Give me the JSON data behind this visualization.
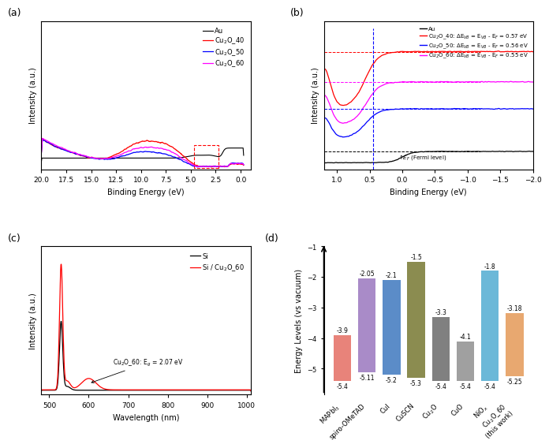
{
  "panel_a": {
    "xlabel": "Binding Energy (eV)",
    "ylabel": "Intensity (a.u.)",
    "xlim": [
      20,
      -1
    ],
    "colors": {
      "Au": "black",
      "Cu2O_40": "red",
      "Cu2O_50": "blue",
      "Cu2O_60": "magenta"
    }
  },
  "panel_b": {
    "xlabel": "Binding Energy (eV)",
    "ylabel": "Intensity (a.u.)",
    "xlim": [
      1.2,
      -2.0
    ],
    "fermi_label": "$E_F$ (Fermi level)"
  },
  "panel_c": {
    "xlabel": "Wavelength (nm)",
    "ylabel": "Intensity (a.u.)",
    "xlim": [
      480,
      1010
    ]
  },
  "panel_d": {
    "ylabel": "Energy Levels (vs vacuum)",
    "materials": [
      "MAPbI$_3$",
      "spiro-OMeTAD",
      "CuI",
      "CuSCN",
      "Cu$_2$O",
      "CuO",
      "NiO$_x$",
      "Cu$_2$O_60\n(this work)"
    ],
    "top_values": [
      -3.9,
      -2.05,
      -2.1,
      -1.5,
      -3.3,
      -4.1,
      -1.8,
      -3.18
    ],
    "bottom_values": [
      -5.4,
      -5.11,
      -5.2,
      -5.3,
      -5.4,
      -5.4,
      -5.4,
      -5.25
    ],
    "bar_colors": [
      "#E8837A",
      "#A98BC8",
      "#5B8CC8",
      "#8B8C50",
      "#808080",
      "#A0A0A0",
      "#6BB8D8",
      "#E8A870"
    ]
  }
}
